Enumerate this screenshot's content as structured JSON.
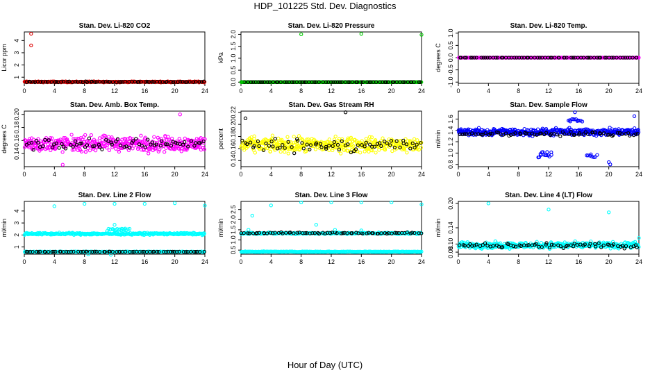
{
  "title": "HDP_101225  Std. Dev. Diagnostics",
  "x_axis_label": "Hour of Day (UTC)",
  "colors": {
    "highlight": "#000000",
    "red": "#dd0000",
    "green": "#00cc00",
    "magenta": "#ff00ff",
    "yellow": "#ffff00",
    "blue": "#0000ff",
    "cyan": "#00ffff"
  },
  "chart_data": [
    {
      "type": "scatter",
      "title": "Stan. Dev. Li-820 CO2",
      "ylabel": "Licor ppm",
      "xlim": [
        0,
        24
      ],
      "ylim": [
        0.5,
        4.7
      ],
      "xticks": [
        "0",
        "4",
        "8",
        "12",
        "16",
        "20",
        "24"
      ],
      "yticks": [
        "1",
        "2",
        "3",
        "4"
      ],
      "color": "#dd0000",
      "series": [
        {
          "color": "#dd0000",
          "band": {
            "x": [
              0,
              24
            ],
            "center": 0.62,
            "spread": 0.06,
            "count": 380
          }
        },
        {
          "color": "#000000",
          "band": {
            "x": [
              0,
              24
            ],
            "center": 0.62,
            "spread": 0.05,
            "count": 70
          }
        },
        {
          "color": "#dd0000",
          "points": [
            [
              0.9,
              4.55
            ],
            [
              0.9,
              3.6
            ]
          ]
        }
      ]
    },
    {
      "type": "scatter",
      "title": "Stan. Dev. Li-820 Pressure",
      "ylabel": "kPa",
      "xlim": [
        0,
        24
      ],
      "ylim": [
        -0.05,
        2.1
      ],
      "xticks": [
        "0",
        "4",
        "8",
        "12",
        "16",
        "20",
        "24"
      ],
      "yticks": [
        "0.0",
        "0.5",
        "1.0",
        "1.5",
        "2.0"
      ],
      "color": "#00cc00",
      "series": [
        {
          "color": "#00cc00",
          "band": {
            "x": [
              0,
              24
            ],
            "center": 0.0,
            "spread": 0.0,
            "count": 380
          }
        },
        {
          "color": "#000000",
          "band": {
            "x": [
              0,
              24
            ],
            "center": 0.0,
            "spread": 0.0,
            "count": 70
          }
        },
        {
          "color": "#00cc00",
          "points": [
            [
              8.0,
              2.0
            ],
            [
              16.0,
              2.02
            ],
            [
              24.0,
              1.98
            ],
            [
              0.1,
              0.0
            ]
          ]
        }
      ]
    },
    {
      "type": "scatter",
      "title": "Stan. Dev. Li-820 Temp.",
      "ylabel": "degrees C",
      "xlim": [
        0,
        24
      ],
      "ylim": [
        -1.05,
        1.05
      ],
      "xticks": [
        "0",
        "4",
        "8",
        "12",
        "16",
        "20",
        "24"
      ],
      "yticks": [
        "-1.0",
        "-0.5",
        "0.0",
        "0.5",
        "1.0"
      ],
      "color": "#ff00ff",
      "series": [
        {
          "color": "#ff00ff",
          "band": {
            "x": [
              0,
              24
            ],
            "center": 0.0,
            "spread": 0.0,
            "count": 380
          }
        },
        {
          "color": "#000000",
          "band": {
            "x": [
              0,
              24
            ],
            "center": 0.0,
            "spread": 0.0,
            "count": 70
          }
        }
      ]
    },
    {
      "type": "scatter",
      "title": "Stan. Dev. Amb. Box Temp.",
      "ylabel": "degrees C",
      "xlim": [
        0,
        24
      ],
      "ylim": [
        0.12,
        0.205
      ],
      "xticks": [
        "0",
        "4",
        "8",
        "12",
        "16",
        "20",
        "24"
      ],
      "yticks": [
        "0.14",
        "0.16",
        "0.18",
        "0.20"
      ],
      "color": "#ff00ff",
      "series": [
        {
          "color": "#ff00ff",
          "band": {
            "x": [
              0,
              24
            ],
            "center": 0.155,
            "spread": 0.017,
            "count": 420
          }
        },
        {
          "color": "#000000",
          "band": {
            "x": [
              0,
              24
            ],
            "center": 0.155,
            "spread": 0.012,
            "count": 70
          }
        },
        {
          "color": "#ff00ff",
          "points": [
            [
              20.7,
              0.2
            ],
            [
              5.1,
              0.123
            ]
          ]
        }
      ]
    },
    {
      "type": "scatter",
      "title": "Stan. Dev. Gas Stream RH",
      "ylabel": "percent",
      "xlim": [
        0,
        24
      ],
      "ylim": [
        0.13,
        0.222
      ],
      "xticks": [
        "0",
        "4",
        "8",
        "12",
        "16",
        "20",
        "24"
      ],
      "yticks": [
        "0.14",
        "0.16",
        "0.18",
        "0.20",
        "0.22"
      ],
      "color": "#ffff00",
      "series": [
        {
          "color": "#ffff00",
          "band": {
            "x": [
              0,
              24
            ],
            "center": 0.166,
            "spread": 0.018,
            "count": 420
          }
        },
        {
          "color": "#000000",
          "band": {
            "x": [
              0,
              24
            ],
            "center": 0.166,
            "spread": 0.016,
            "count": 70
          }
        },
        {
          "color": "#000000",
          "points": [
            [
              13.9,
              0.22
            ],
            [
              0.6,
              0.21
            ]
          ]
        }
      ]
    },
    {
      "type": "scatter",
      "title": "Stan. Dev. Sample Flow",
      "ylabel": "ml/min",
      "xlim": [
        0,
        24
      ],
      "ylim": [
        0.76,
        1.74
      ],
      "xticks": [
        "0",
        "4",
        "8",
        "12",
        "16",
        "20",
        "24"
      ],
      "yticks": [
        "0.8",
        "1.0",
        "1.2",
        "1.4",
        "1.6"
      ],
      "color": "#0000ff",
      "series": [
        {
          "color": "#0000ff",
          "band": {
            "x": [
              0,
              24
            ],
            "center": 1.37,
            "spread": 0.09,
            "count": 430
          }
        },
        {
          "color": "#000000",
          "band": {
            "x": [
              0,
              24
            ],
            "center": 1.34,
            "spread": 0.05,
            "count": 70
          }
        },
        {
          "color": "#0000ff",
          "band": {
            "x": [
              10.5,
              12.5
            ],
            "center": 0.98,
            "spread": 0.08,
            "count": 14
          }
        },
        {
          "color": "#0000ff",
          "band": {
            "x": [
              17,
              18.5
            ],
            "center": 0.95,
            "spread": 0.05,
            "count": 8
          }
        },
        {
          "color": "#0000ff",
          "band": {
            "x": [
              14.5,
              16.5
            ],
            "center": 1.58,
            "spread": 0.1,
            "count": 12
          }
        },
        {
          "color": "#0000ff",
          "points": [
            [
              20.2,
              0.8
            ],
            [
              20.0,
              0.84
            ],
            [
              15.5,
              1.72
            ],
            [
              23.4,
              1.65
            ]
          ]
        }
      ]
    },
    {
      "type": "scatter",
      "title": "Stan. Dev. Line 2 Flow",
      "ylabel": "ml/min",
      "xlim": [
        0,
        24
      ],
      "ylim": [
        0.4,
        4.8
      ],
      "xticks": [
        "0",
        "4",
        "8",
        "12",
        "16",
        "20",
        "24"
      ],
      "yticks": [
        "1",
        "2",
        "3",
        "4"
      ],
      "color": "#00ffff",
      "series": [
        {
          "color": "#00ffff",
          "band": {
            "x": [
              0,
              24
            ],
            "center": 2.1,
            "spread": 0.12,
            "count": 300
          }
        },
        {
          "color": "#00ffff",
          "band": {
            "x": [
              0,
              24
            ],
            "center": 0.6,
            "spread": 0.03,
            "count": 300
          }
        },
        {
          "color": "#000000",
          "band": {
            "x": [
              0,
              24
            ],
            "center": 0.6,
            "spread": 0.02,
            "count": 70
          }
        },
        {
          "color": "#00ffff",
          "band": {
            "x": [
              11,
              14
            ],
            "center": 2.45,
            "spread": 0.18,
            "count": 20
          }
        },
        {
          "color": "#00ffff",
          "points": [
            [
              4.0,
              4.4
            ],
            [
              8.0,
              4.6
            ],
            [
              12.0,
              4.6
            ],
            [
              16.0,
              4.6
            ],
            [
              20.0,
              4.65
            ],
            [
              24.0,
              4.45
            ],
            [
              12.0,
              2.85
            ],
            [
              11.5,
              0.35
            ],
            [
              8.5,
              0.38
            ]
          ]
        }
      ]
    },
    {
      "type": "scatter",
      "title": "Stan. Dev. Line 3 Flow",
      "ylabel": "ml/min",
      "xlim": [
        0,
        24
      ],
      "ylim": [
        0.3,
        2.9
      ],
      "xticks": [
        "0",
        "4",
        "8",
        "12",
        "16",
        "20",
        "24"
      ],
      "yticks": [
        "0.5",
        "1.0",
        "1.5",
        "2.0",
        "2.5"
      ],
      "color": "#00ffff",
      "series": [
        {
          "color": "#00ffff",
          "band": {
            "x": [
              0,
              24
            ],
            "center": 1.33,
            "spread": 0.06,
            "count": 260
          }
        },
        {
          "color": "#00ffff",
          "band": {
            "x": [
              0,
              24
            ],
            "center": 0.42,
            "spread": 0.025,
            "count": 320
          }
        },
        {
          "color": "#000000",
          "band": {
            "x": [
              0,
              24
            ],
            "center": 1.34,
            "spread": 0.05,
            "count": 70
          }
        },
        {
          "color": "#00ffff",
          "points": [
            [
              1.5,
              2.2
            ],
            [
              4.0,
              2.7
            ],
            [
              8.0,
              2.85
            ],
            [
              12.0,
              2.85
            ],
            [
              16.0,
              2.85
            ],
            [
              20.0,
              2.85
            ],
            [
              24.0,
              2.75
            ],
            [
              10.0,
              1.75
            ],
            [
              12.5,
              1.5
            ],
            [
              16.0,
              1.47
            ],
            [
              1.0,
              1.5
            ]
          ]
        }
      ]
    },
    {
      "type": "scatter",
      "title": "Stan. Dev. Line 4 (LT) Flow",
      "ylabel": "ml/min",
      "xlim": [
        0,
        24
      ],
      "ylim": [
        0.075,
        0.205
      ],
      "xticks": [
        "0",
        "4",
        "8",
        "12",
        "16",
        "20",
        "24"
      ],
      "yticks": [
        "0.08",
        "0.10",
        "0.14",
        "0.20"
      ],
      "ytick_values": [
        0.08,
        0.1,
        0.14,
        0.2
      ],
      "color": "#00ffff",
      "series": [
        {
          "color": "#00ffff",
          "band": {
            "x": [
              0,
              24
            ],
            "center": 0.097,
            "spread": 0.011,
            "count": 420
          }
        },
        {
          "color": "#000000",
          "band": {
            "x": [
              0,
              24
            ],
            "center": 0.096,
            "spread": 0.008,
            "count": 70
          }
        },
        {
          "color": "#00ffff",
          "points": [
            [
              4.0,
              0.2
            ],
            [
              12.0,
              0.185
            ],
            [
              20.0,
              0.178
            ],
            [
              24.0,
              0.115
            ]
          ]
        }
      ]
    }
  ]
}
